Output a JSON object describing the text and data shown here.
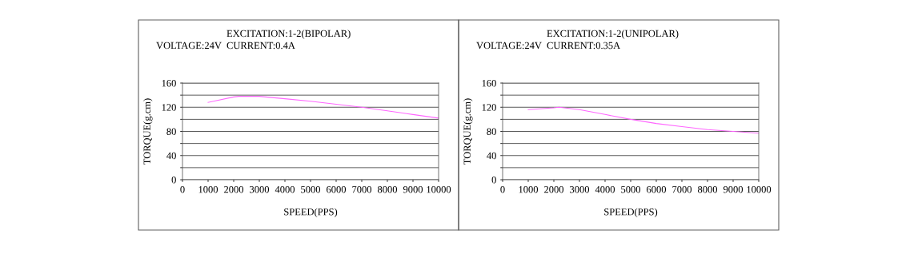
{
  "chart_data": [
    {
      "type": "line",
      "xlabel": "SPEED(PPS)",
      "ylabel": "TORQUE(g.cm)",
      "annotations": [
        "EXCITATION:1-2(BIPOLAR)",
        "VOLTAGE:24V",
        "CURRENT:0.4A"
      ],
      "x": [
        1000,
        2000,
        2200,
        3000,
        4000,
        5000,
        6000,
        7000,
        8000,
        9000,
        10000
      ],
      "series": [
        {
          "color": "#ff66ff",
          "values": [
            128,
            137,
            138,
            138,
            134,
            130,
            125,
            120,
            114,
            108,
            102
          ]
        }
      ],
      "xlim": [
        0,
        10000
      ],
      "xticks": [
        0,
        1000,
        2000,
        3000,
        4000,
        5000,
        6000,
        7000,
        8000,
        9000,
        10000
      ],
      "ylim": [
        0,
        160
      ],
      "yticks": [
        0,
        {
          "value": 20,
          "label": null
        },
        40,
        {
          "value": 60,
          "label": null
        },
        80,
        {
          "value": 100,
          "label": null
        },
        120,
        {
          "value": 140,
          "label": null
        },
        160
      ],
      "grid": "y",
      "legend": false
    },
    {
      "type": "line",
      "xlabel": "SPEED(PPS)",
      "ylabel": "TORQUE(g.cm)",
      "annotations": [
        "EXCITATION:1-2(UNIPOLAR)",
        "VOLTAGE:24V",
        "CURRENT:0.35A"
      ],
      "x": [
        1000,
        2000,
        2200,
        3000,
        4000,
        5000,
        6000,
        7000,
        8000,
        9000,
        10000
      ],
      "series": [
        {
          "color": "#ff66ff",
          "values": [
            116,
            119,
            120,
            116,
            108,
            100,
            93,
            88,
            83,
            80,
            77
          ]
        }
      ],
      "xlim": [
        0,
        10000
      ],
      "xticks": [
        0,
        1000,
        2000,
        3000,
        4000,
        5000,
        6000,
        7000,
        8000,
        9000,
        10000
      ],
      "ylim": [
        0,
        160
      ],
      "yticks": [
        0,
        {
          "value": 20,
          "label": null
        },
        40,
        {
          "value": 60,
          "label": null
        },
        80,
        {
          "value": 100,
          "label": null
        },
        120,
        {
          "value": 140,
          "label": null
        },
        160
      ],
      "grid": "y",
      "legend": false
    }
  ]
}
